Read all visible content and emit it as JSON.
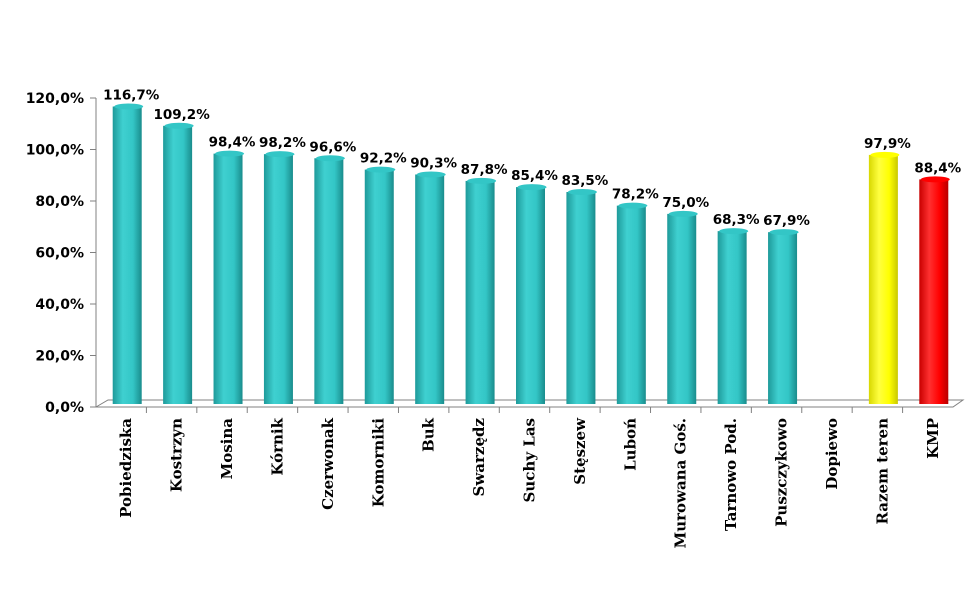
{
  "chart_data": {
    "type": "bar",
    "categories": [
      "Pobiedziska",
      "Kostrzyn",
      "Mosina",
      "Kórnik",
      "Czerwonak",
      "Komorniki",
      "Buk",
      "Swarzędz",
      "Suchy Las",
      "Stęszew",
      "Luboń",
      "Murowana Goś.",
      "Tarnowo Pod.",
      "Puszczykowo",
      "Dopiewo",
      "Razem teren",
      "KMP"
    ],
    "values": [
      116.7,
      109.2,
      98.4,
      98.2,
      96.6,
      92.2,
      90.3,
      87.8,
      85.4,
      83.5,
      78.2,
      75.0,
      68.3,
      67.9,
      null,
      97.9,
      88.4
    ],
    "data_labels": [
      "116,7%",
      "109,2%",
      "98,4%",
      "98,2%",
      "96,6%",
      "92,2%",
      "90,3%",
      "87,8%",
      "85,4%",
      "83,5%",
      "78,2%",
      "75,0%",
      "68,3%",
      "67,9%",
      "",
      "97,9%",
      "88,4%"
    ],
    "bar_colors": [
      "#33c6c6",
      "#33c6c6",
      "#33c6c6",
      "#33c6c6",
      "#33c6c6",
      "#33c6c6",
      "#33c6c6",
      "#33c6c6",
      "#33c6c6",
      "#33c6c6",
      "#33c6c6",
      "#33c6c6",
      "#33c6c6",
      "#33c6c6",
      "#33c6c6",
      "#ffff00",
      "#ff0000"
    ],
    "yticks": [
      "0,0%",
      "20,0%",
      "40,0%",
      "60,0%",
      "80,0%",
      "100,0%",
      "120,0%"
    ],
    "ylim": [
      0,
      120
    ],
    "grid": false,
    "legend": "none",
    "title": "",
    "xlabel": "",
    "ylabel": ""
  }
}
